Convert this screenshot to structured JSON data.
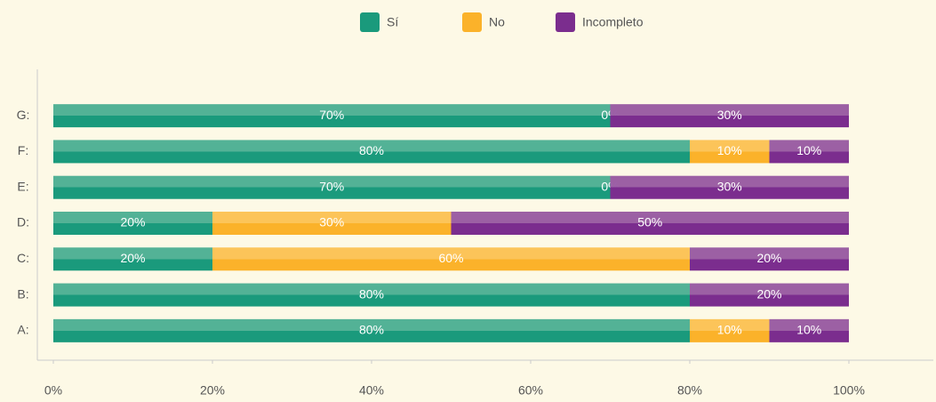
{
  "chart_data": {
    "type": "stacked-bar-horizontal",
    "categories": [
      "A:",
      "B:",
      "C:",
      "D:",
      "E:",
      "F:",
      "G:"
    ],
    "series": [
      {
        "name": "Sí",
        "color": "#1a9a7c",
        "values": [
          80,
          80,
          20,
          20,
          70,
          80,
          70
        ],
        "value_labels": [
          "80%",
          "80%",
          "20%",
          "20%",
          "70%",
          "80%",
          "70%"
        ]
      },
      {
        "name": "No",
        "color": "#fbb22a",
        "values": [
          10,
          0,
          60,
          30,
          0,
          10,
          0
        ],
        "value_labels": [
          "10%",
          null,
          "60%",
          "30%",
          "0%",
          "10%",
          "0%"
        ]
      },
      {
        "name": "Incompleto",
        "color": "#7b2d8e",
        "values": [
          10,
          20,
          20,
          50,
          30,
          10,
          30
        ],
        "value_labels": [
          "10%",
          "20%",
          "20%",
          "50%",
          "30%",
          "10%",
          "30%"
        ]
      }
    ],
    "xlim": [
      0,
      100
    ],
    "xticks": [
      {
        "value": 0,
        "label": "0%"
      },
      {
        "value": 20,
        "label": "20%"
      },
      {
        "value": 40,
        "label": "40%"
      },
      {
        "value": 60,
        "label": "60%"
      },
      {
        "value": 80,
        "label": "80%"
      },
      {
        "value": 100,
        "label": "100%"
      }
    ],
    "legend": "top"
  }
}
